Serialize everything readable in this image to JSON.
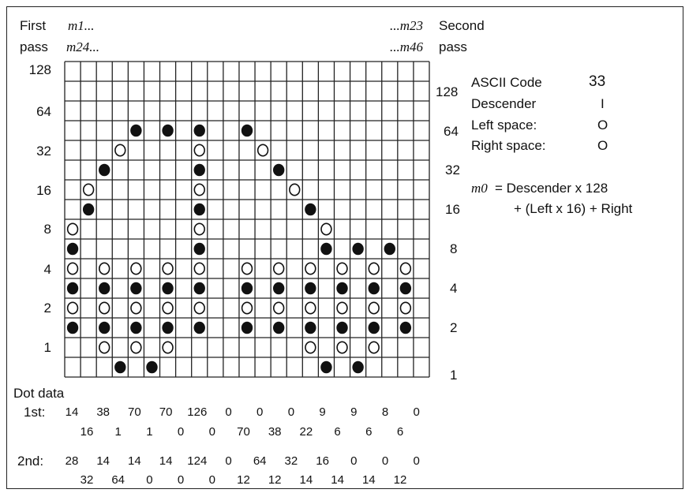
{
  "header": {
    "first_label": "First",
    "pass_label_left": "pass",
    "m1": "m1...",
    "m24": "m24...",
    "m23": "...m23",
    "m46": "...m46",
    "second_label": "Second",
    "pass_label_right": "pass"
  },
  "left_axis": [
    "128",
    "64",
    "32",
    "16",
    "8",
    "4",
    "2",
    "1"
  ],
  "right_axis": [
    "128",
    "64",
    "32",
    "16",
    "8",
    "4",
    "2",
    "1"
  ],
  "info": {
    "ascii_label": "ASCII Code",
    "ascii_value": "33",
    "descender_label": "Descender",
    "descender_value": "I",
    "left_space_label": "Left space:",
    "left_space_value": "O",
    "right_space_label": "Right space:",
    "right_space_value": "O",
    "formula_var": "m0",
    "formula_line1": "= Descender x 128",
    "formula_line2": "+ (Left x 16) + Right"
  },
  "dot_data": {
    "title": "Dot data",
    "first_label": "1st:",
    "first_top": [
      "14",
      "38",
      "70",
      "70",
      "126",
      "0",
      "0",
      "0",
      "9",
      "9",
      "8",
      "0"
    ],
    "first_bottom": [
      "16",
      "1",
      "1",
      "0",
      "0",
      "70",
      "38",
      "22",
      "6",
      "6",
      "6"
    ],
    "second_label": "2nd:",
    "second_top": [
      "28",
      "14",
      "14",
      "14",
      "124",
      "0",
      "64",
      "32",
      "16",
      "0",
      "0",
      "0"
    ],
    "second_bottom": [
      "32",
      "64",
      "0",
      "0",
      "0",
      "12",
      "12",
      "14",
      "14",
      "14",
      "12"
    ]
  },
  "grid": {
    "columns": 23,
    "rows": 16,
    "filled_dots": [
      [
        4,
        3
      ],
      [
        6,
        3
      ],
      [
        8,
        3
      ],
      [
        11,
        3
      ],
      [
        2,
        5
      ],
      [
        8,
        5
      ],
      [
        13,
        5
      ],
      [
        1,
        7
      ],
      [
        8,
        7
      ],
      [
        15,
        7
      ],
      [
        0,
        9
      ],
      [
        8,
        9
      ],
      [
        16,
        9
      ],
      [
        18,
        9
      ],
      [
        20,
        9
      ],
      [
        0,
        11
      ],
      [
        2,
        11
      ],
      [
        4,
        11
      ],
      [
        6,
        11
      ],
      [
        8,
        11
      ],
      [
        11,
        11
      ],
      [
        13,
        11
      ],
      [
        15,
        11
      ],
      [
        17,
        11
      ],
      [
        19,
        11
      ],
      [
        21,
        11
      ],
      [
        0,
        13
      ],
      [
        2,
        13
      ],
      [
        4,
        13
      ],
      [
        6,
        13
      ],
      [
        8,
        13
      ],
      [
        11,
        13
      ],
      [
        13,
        13
      ],
      [
        15,
        13
      ],
      [
        17,
        13
      ],
      [
        19,
        13
      ],
      [
        21,
        13
      ],
      [
        3,
        15
      ],
      [
        5,
        15
      ],
      [
        16,
        15
      ],
      [
        18,
        15
      ]
    ],
    "open_dots": [
      [
        3,
        4
      ],
      [
        8,
        4
      ],
      [
        12,
        4
      ],
      [
        1,
        6
      ],
      [
        8,
        6
      ],
      [
        14,
        6
      ],
      [
        0,
        8
      ],
      [
        8,
        8
      ],
      [
        16,
        8
      ],
      [
        0,
        10
      ],
      [
        2,
        10
      ],
      [
        4,
        10
      ],
      [
        6,
        10
      ],
      [
        8,
        10
      ],
      [
        11,
        10
      ],
      [
        13,
        10
      ],
      [
        15,
        10
      ],
      [
        17,
        10
      ],
      [
        19,
        10
      ],
      [
        21,
        10
      ],
      [
        0,
        12
      ],
      [
        2,
        12
      ],
      [
        4,
        12
      ],
      [
        6,
        12
      ],
      [
        8,
        12
      ],
      [
        11,
        12
      ],
      [
        13,
        12
      ],
      [
        15,
        12
      ],
      [
        17,
        12
      ],
      [
        19,
        12
      ],
      [
        21,
        12
      ],
      [
        2,
        14
      ],
      [
        4,
        14
      ],
      [
        6,
        14
      ],
      [
        15,
        14
      ],
      [
        17,
        14
      ],
      [
        19,
        14
      ]
    ]
  }
}
